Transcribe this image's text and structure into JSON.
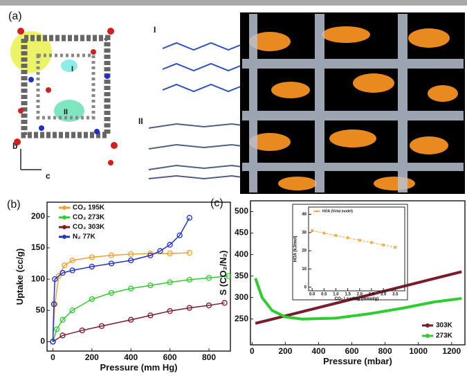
{
  "panel_a": {
    "label": "(a)",
    "labels": [
      "I",
      "II",
      "I",
      "II"
    ],
    "axes": [
      "b",
      "c"
    ]
  },
  "chart_data": [
    {
      "type": "line",
      "panel_label": "(b)",
      "xlabel": "Pressure (mm Hg)",
      "ylabel": "Uptake (cc/g)",
      "xlim": [
        -30,
        910
      ],
      "ylim": [
        -15,
        223
      ],
      "xticks": [
        0,
        200,
        400,
        600,
        800
      ],
      "yticks": [
        0,
        50,
        100,
        150,
        200
      ],
      "markers": true,
      "legend": "upper-left",
      "series": [
        {
          "name": "CO₂ 195K",
          "color": "#f0a030",
          "x": [
            0,
            10,
            30,
            60,
            100,
            200,
            300,
            400,
            500,
            600,
            700
          ],
          "values": [
            0,
            60,
            105,
            122,
            130,
            135,
            138,
            140,
            141,
            141,
            142
          ]
        },
        {
          "name": "CO₂ 273K",
          "color": "#2ecc2e",
          "x": [
            0,
            20,
            50,
            100,
            200,
            300,
            400,
            500,
            600,
            700,
            800,
            900
          ],
          "values": [
            0,
            20,
            35,
            50,
            68,
            78,
            85,
            90,
            95,
            99,
            102,
            105
          ]
        },
        {
          "name": "CO₂ 303K",
          "color": "#7a1a2a",
          "x": [
            0,
            50,
            150,
            250,
            400,
            500,
            600,
            700,
            800,
            880
          ],
          "values": [
            0,
            10,
            18,
            25,
            35,
            42,
            49,
            54,
            58,
            62
          ]
        },
        {
          "name": "N₂ 77K",
          "color": "#2233cc",
          "x": [
            0,
            5,
            10,
            50,
            100,
            200,
            300,
            400,
            500,
            550,
            600,
            650,
            700
          ],
          "values": [
            0,
            60,
            100,
            110,
            114,
            120,
            125,
            130,
            138,
            145,
            155,
            170,
            198
          ]
        }
      ]
    },
    {
      "type": "line",
      "panel_label": "(c)",
      "xlabel": "Pressure (mbar)",
      "ylabel": "S (CO₂/N₂)",
      "xlim": [
        -10,
        1280
      ],
      "ylim": [
        190,
        525
      ],
      "xticks": [
        0,
        200,
        400,
        600,
        800,
        1000,
        1200
      ],
      "yticks": [
        250,
        300,
        350,
        400,
        450,
        500
      ],
      "markers": false,
      "legend": "lower-right",
      "series": [
        {
          "name": "303K",
          "color": "#7a1a2a",
          "x": [
            20,
            1260
          ],
          "values": [
            240,
            360
          ]
        },
        {
          "name": "273K",
          "color": "#2ecc2e",
          "x": [
            20,
            60,
            120,
            200,
            300,
            500,
            700,
            900,
            1100,
            1260
          ],
          "values": [
            345,
            300,
            270,
            255,
            250,
            252,
            262,
            275,
            290,
            298
          ]
        }
      ]
    },
    {
      "type": "line",
      "xlabel": "CO₂ Loading (mmol/g)",
      "ylabel": "HOA (kJ/mol)",
      "xlim": [
        -0.15,
        3.9
      ],
      "ylim": [
        -2,
        44
      ],
      "xticks": [
        {
          "value": 0,
          "label": "0.0"
        },
        0.5,
        {
          "value": 1,
          "label": "1.0"
        },
        1.5,
        {
          "value": 2,
          "label": "2.0"
        },
        2.5,
        {
          "value": 3,
          "label": "3.0"
        },
        3.5
      ],
      "yticks": [
        0,
        10,
        20,
        30,
        40
      ],
      "markers": true,
      "legend": "upper-left",
      "series": [
        {
          "name": "HOA (Virial model)",
          "color": "#f0a030",
          "x": [
            0,
            0.5,
            1,
            1.5,
            2,
            2.5,
            3,
            3.5
          ],
          "values": [
            31,
            29.7,
            28.4,
            27.1,
            25.8,
            24.5,
            23.2,
            21.9
          ]
        }
      ]
    }
  ]
}
